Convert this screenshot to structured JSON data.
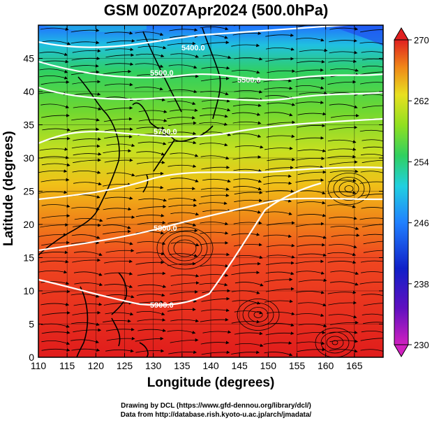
{
  "title": "GSM 00Z07Apr2024 (500.0hPa)",
  "axes": {
    "xlabel": "Longitude (degrees)",
    "ylabel": "Latitude  (degrees)",
    "x_ticks": [
      "110",
      "115",
      "120",
      "125",
      "130",
      "135",
      "140",
      "145",
      "150",
      "155",
      "160",
      "165"
    ],
    "y_ticks": [
      "0",
      "5",
      "10",
      "15",
      "20",
      "25",
      "30",
      "35",
      "40",
      "45"
    ],
    "xlim": [
      110,
      170
    ],
    "ylim": [
      0,
      50
    ]
  },
  "colorbar": {
    "ticks": [
      "270",
      "262",
      "254",
      "246",
      "238",
      "230"
    ],
    "range": [
      230,
      270
    ],
    "colors": [
      "#d020c0",
      "#1010c0",
      "#2080ff",
      "#20d0e0",
      "#30d060",
      "#90e020",
      "#e8e020",
      "#f0a010",
      "#f05020",
      "#e02020"
    ]
  },
  "contours": [
    {
      "label": "5400.0"
    },
    {
      "label": "5500.0"
    },
    {
      "label": "5600.0"
    },
    {
      "label": "5700.0"
    },
    {
      "label": "5800.0"
    },
    {
      "label": "5900.0"
    }
  ],
  "credits": {
    "line1": "Drawing by DCL (https://www.gfd-dennou.org/library/dcl/)",
    "line2": "Data from http://database.rish.kyoto-u.ac.jp/arch/jmadata/"
  }
}
